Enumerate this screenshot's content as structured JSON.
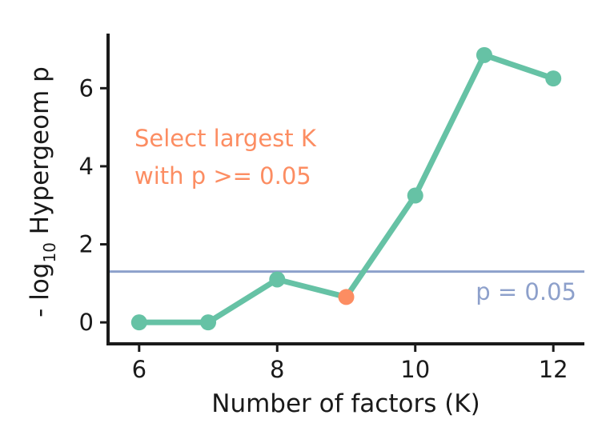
{
  "chart_data": {
    "type": "line",
    "x": [
      6,
      7,
      8,
      9,
      10,
      11,
      12
    ],
    "series": [
      {
        "values": [
          0.0,
          0.0,
          1.1,
          0.65,
          3.25,
          6.85,
          6.25
        ]
      }
    ],
    "highlight": {
      "x": 9,
      "y": 0.65
    },
    "reference_line": {
      "y": 1.301,
      "label": "p = 0.05"
    },
    "annotation": [
      "Select largest K",
      "with p >= 0.05"
    ],
    "xlabel": "Number of factors (K)",
    "ylabel": {
      "prefix": "- log",
      "subscript": "10",
      "suffix": " Hypergeom p"
    },
    "xticks": [
      6,
      8,
      10,
      12
    ],
    "yticks": [
      0,
      2,
      4,
      6
    ],
    "xlim": [
      5.55,
      12.45
    ],
    "ylim": [
      -0.55,
      7.4
    ],
    "grid": false,
    "colors": {
      "line": "#66c2a5",
      "highlight": "#fc8d62",
      "reference": "#8da0cb",
      "annotation": "#fc8d62",
      "axis": "#1a1a1a"
    }
  }
}
